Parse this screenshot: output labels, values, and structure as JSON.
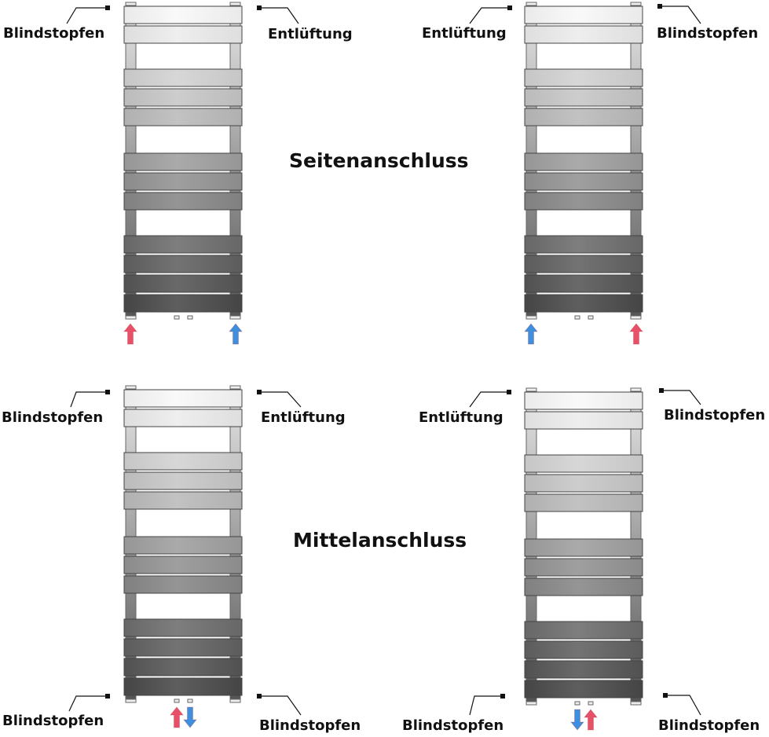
{
  "titles": {
    "side": "Seitenanschluss",
    "center": "Mittelanschluss"
  },
  "labels": {
    "tl_top_left": "Blindstopfen",
    "tl_top_right": "Entlüftung",
    "tr_top_left": "Entlüftung",
    "tr_top_right": "Blindstopfen",
    "bl_top_left": "Blindstopfen",
    "bl_top_right": "Entlüftung",
    "bl_bottom_left": "Blindstopfen",
    "bl_bottom_right": "Blindstopfen",
    "br_top_left": "Entlüftung",
    "br_top_right": "Blindstopfen",
    "br_bottom_left": "Blindstopfen",
    "br_bottom_right": "Blindstopfen"
  },
  "colors": {
    "supply": "#e8506a",
    "return": "#3d8fe0"
  },
  "radiators": [
    {
      "name": "side-left-supply",
      "arrows": [
        {
          "type": "supply",
          "dir": "up",
          "pos": "left"
        },
        {
          "type": "return",
          "dir": "up",
          "pos": "right"
        }
      ]
    },
    {
      "name": "side-right-supply",
      "arrows": [
        {
          "type": "return",
          "dir": "up",
          "pos": "left"
        },
        {
          "type": "supply",
          "dir": "up",
          "pos": "right"
        }
      ]
    },
    {
      "name": "center-supply-left",
      "arrows": [
        {
          "type": "supply",
          "dir": "up",
          "pos": "center-left"
        },
        {
          "type": "return",
          "dir": "down",
          "pos": "center-right"
        }
      ]
    },
    {
      "name": "center-supply-right",
      "arrows": [
        {
          "type": "return",
          "dir": "down",
          "pos": "center-left"
        },
        {
          "type": "supply",
          "dir": "up",
          "pos": "center-right"
        }
      ]
    }
  ]
}
